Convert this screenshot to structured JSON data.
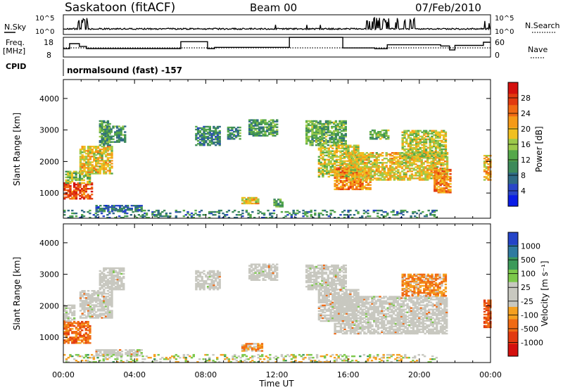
{
  "header": {
    "station": "Saskatoon (fitACF)",
    "beam": "Beam 00",
    "date": "07/Feb/2010"
  },
  "panels": {
    "nsky_label": "N.Sky",
    "nsearch_label": "N.Search",
    "freq_label_line1": "Freq.",
    "freq_label_line2": "[MHz]",
    "nave_label": "Nave",
    "cpid_label": "CPID",
    "cpid_text": "normalsound (fast) -157"
  },
  "colorbars": {
    "power": {
      "title": "Power [dB]",
      "ticks": [
        "4",
        "8",
        "12",
        "16",
        "20",
        "24",
        "28"
      ],
      "colors": [
        "#0a1ce6",
        "#2a46c8",
        "#2f6a86",
        "#3d8a5a",
        "#55a84a",
        "#9cc94a",
        "#f0c020",
        "#f59a18",
        "#f06a14",
        "#e23a10",
        "#d4100e"
      ]
    },
    "velocity": {
      "title": "Velocity [m s⁻¹]",
      "ticks": [
        "1000",
        "500",
        "100",
        "25",
        "-25",
        "-100",
        "-500",
        "-1000"
      ],
      "colors": [
        "#2444c8",
        "#2f7aa0",
        "#3c9a5a",
        "#7cc84a",
        "#c8c8c0",
        "#c8c8c0",
        "#f5a020",
        "#f06a14",
        "#e23a10",
        "#d4100e"
      ]
    }
  },
  "chart_data": [
    {
      "type": "line",
      "title": "Saskatoon (fitACF)",
      "subtitle": "Beam 00 07/Feb/2010",
      "left_axis": {
        "label": "N.Sky",
        "ticks": [
          "10^5",
          "10^0"
        ]
      },
      "right_axis": {
        "label": "N.Search",
        "ticks": [
          "10^5",
          "10^0"
        ]
      },
      "xlim": [
        0,
        24
      ]
    },
    {
      "type": "line",
      "left_axis": {
        "label": "Freq. [MHz]",
        "ticks": [
          "18",
          "8"
        ]
      },
      "right_axis": {
        "label": "Nave",
        "ticks": [
          "60",
          "0"
        ]
      },
      "series": [
        {
          "name": "Freq.",
          "x": [
            0,
            0.35,
            0.9,
            1.3,
            4.5,
            6.6,
            8.1,
            8.5,
            12.6,
            12.7,
            15.7,
            17.5,
            18.2,
            21.2,
            21.7,
            22.0,
            23.6,
            24
          ],
          "y": [
            12.2,
            14.8,
            13.4,
            12.3,
            12.3,
            15.8,
            12.3,
            12.9,
            12.9,
            18,
            12.6,
            12.2,
            14.2,
            13.6,
            11.6,
            13.9,
            15.5,
            15.5
          ]
        },
        {
          "name": "Nave",
          "x": [
            0,
            24
          ],
          "y": [
            24,
            24
          ]
        }
      ]
    },
    {
      "type": "heatmap",
      "quantity": "Power",
      "xlabel": "",
      "ylabel": "Slant Range [km]",
      "xlim": [
        0,
        24
      ],
      "ylim": [
        200,
        4600
      ],
      "yticks": [
        1000,
        2000,
        3000,
        4000
      ],
      "xticks": [
        "00:00",
        "04:00",
        "08:00",
        "12:00",
        "16:00",
        "20:00",
        "00:00"
      ],
      "patches": [
        {
          "t": [
            0.0,
            1.6
          ],
          "r": [
            800,
            1300
          ],
          "v": 26
        },
        {
          "t": [
            0.1,
            1.5
          ],
          "r": [
            1300,
            1700
          ],
          "v": 14
        },
        {
          "t": [
            0.9,
            2.7
          ],
          "r": [
            1600,
            2500
          ],
          "v": 18
        },
        {
          "t": [
            2.0,
            2.6
          ],
          "r": [
            2500,
            3300
          ],
          "v": 10
        },
        {
          "t": [
            2.3,
            3.4
          ],
          "r": [
            2600,
            3100
          ],
          "v": 10
        },
        {
          "t": [
            1.8,
            4.4
          ],
          "r": [
            400,
            600
          ],
          "v": 6
        },
        {
          "t": [
            7.4,
            8.8
          ],
          "r": [
            2500,
            3100
          ],
          "v": 8
        },
        {
          "t": [
            9.2,
            9.9
          ],
          "r": [
            2700,
            3100
          ],
          "v": 9
        },
        {
          "t": [
            10.4,
            12.0
          ],
          "r": [
            2800,
            3300
          ],
          "v": 10
        },
        {
          "t": [
            10.0,
            10.9
          ],
          "r": [
            650,
            850
          ],
          "v": 18
        },
        {
          "t": [
            11.8,
            12.3
          ],
          "r": [
            550,
            800
          ],
          "v": 12
        },
        {
          "t": [
            13.6,
            15.8
          ],
          "r": [
            2500,
            3300
          ],
          "v": 12
        },
        {
          "t": [
            14.3,
            16.5
          ],
          "r": [
            1500,
            2500
          ],
          "v": 16
        },
        {
          "t": [
            15.2,
            17.2
          ],
          "r": [
            1100,
            1800
          ],
          "v": 22
        },
        {
          "t": [
            16.0,
            21.5
          ],
          "r": [
            1400,
            2300
          ],
          "v": 18
        },
        {
          "t": [
            17.2,
            18.2
          ],
          "r": [
            2700,
            3000
          ],
          "v": 12
        },
        {
          "t": [
            19.0,
            21.5
          ],
          "r": [
            2100,
            3000
          ],
          "v": 16
        },
        {
          "t": [
            20.8,
            21.7
          ],
          "r": [
            1000,
            1800
          ],
          "v": 22
        },
        {
          "t": [
            23.6,
            24.0
          ],
          "r": [
            1400,
            2200
          ],
          "v": 20
        },
        {
          "t": [
            0.0,
            21.0
          ],
          "r": [
            200,
            450
          ],
          "v": 8
        }
      ]
    },
    {
      "type": "heatmap",
      "quantity": "Velocity",
      "xlabel": "Time UT",
      "ylabel": "Slant Range [km]",
      "xlim": [
        0,
        24
      ],
      "ylim": [
        200,
        4600
      ],
      "yticks": [
        1000,
        2000,
        3000,
        4000
      ],
      "xticks": [
        "00:00",
        "04:00",
        "08:00",
        "12:00",
        "16:00",
        "20:00",
        "00:00"
      ],
      "patches": [
        {
          "t": [
            0.0,
            1.5
          ],
          "r": [
            800,
            1500
          ],
          "v": -300
        },
        {
          "t": [
            0.0,
            0.6
          ],
          "r": [
            1500,
            2000
          ],
          "v": 0
        },
        {
          "t": [
            0.9,
            2.7
          ],
          "r": [
            1600,
            2500
          ],
          "v": 0
        },
        {
          "t": [
            2.0,
            3.4
          ],
          "r": [
            2500,
            3200
          ],
          "v": 0
        },
        {
          "t": [
            1.8,
            4.4
          ],
          "r": [
            400,
            600
          ],
          "v": 0
        },
        {
          "t": [
            7.4,
            8.8
          ],
          "r": [
            2500,
            3100
          ],
          "v": 0
        },
        {
          "t": [
            10.4,
            12.0
          ],
          "r": [
            2800,
            3300
          ],
          "v": 0
        },
        {
          "t": [
            10.0,
            11.2
          ],
          "r": [
            550,
            800
          ],
          "v": -150
        },
        {
          "t": [
            13.6,
            15.8
          ],
          "r": [
            2500,
            3300
          ],
          "v": 0
        },
        {
          "t": [
            14.3,
            16.5
          ],
          "r": [
            1500,
            2500
          ],
          "v": 0
        },
        {
          "t": [
            15.2,
            21.5
          ],
          "r": [
            1100,
            2300
          ],
          "v": 0
        },
        {
          "t": [
            19.0,
            21.5
          ],
          "r": [
            2300,
            3000
          ],
          "v": -200
        },
        {
          "t": [
            23.6,
            24.0
          ],
          "r": [
            1300,
            2200
          ],
          "v": -400
        },
        {
          "t": [
            0.0,
            21.0
          ],
          "r": [
            200,
            450
          ],
          "v": 20
        }
      ]
    }
  ]
}
